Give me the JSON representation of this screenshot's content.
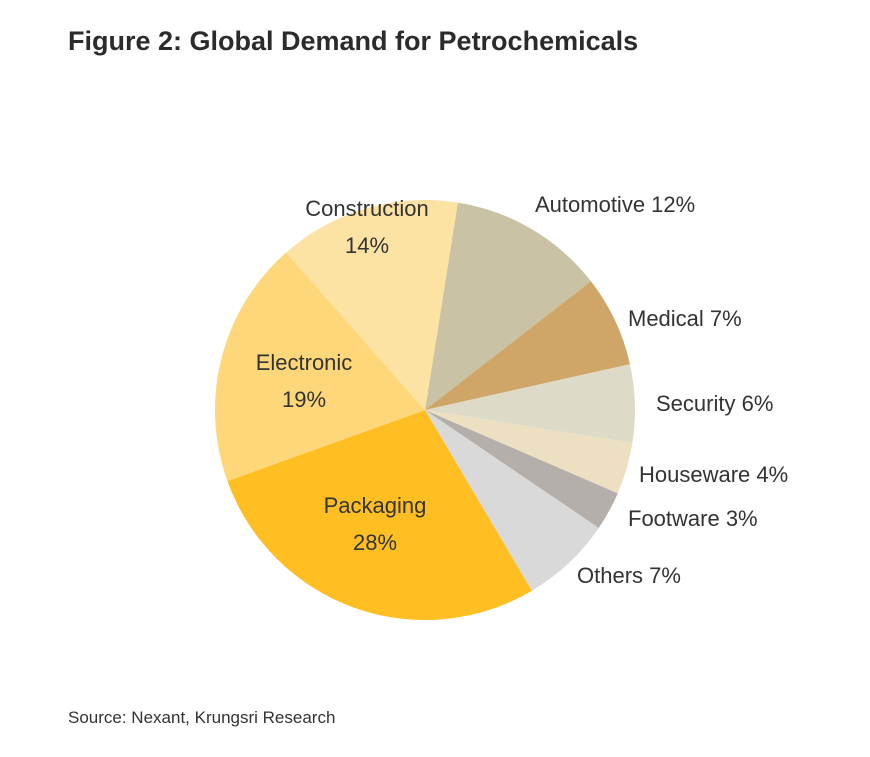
{
  "title": "Figure 2: Global Demand for Petrochemicals",
  "source": "Source: Nexant, Krungsri Research",
  "chart_data": {
    "type": "pie",
    "title": "Figure 2: Global Demand for Petrochemicals",
    "unit": "%",
    "slices": [
      {
        "label": "Automotive",
        "value": 12,
        "value_label": "12%",
        "color": "#C9C2A4"
      },
      {
        "label": "Medical",
        "value": 7,
        "value_label": "7%",
        "color": "#CFA668"
      },
      {
        "label": "Security",
        "value": 6,
        "value_label": "6%",
        "color": "#DDDBC8"
      },
      {
        "label": "Houseware",
        "value": 4,
        "value_label": "4%",
        "color": "#EDDFC2"
      },
      {
        "label": "Footware",
        "value": 3,
        "value_label": "3%",
        "color": "#B5AFAB"
      },
      {
        "label": "Others",
        "value": 7,
        "value_label": "7%",
        "color": "#D9D9D9"
      },
      {
        "label": "Packaging",
        "value": 28,
        "value_label": "28%",
        "color": "#FFBE21"
      },
      {
        "label": "Electronic",
        "value": 19,
        "value_label": "19%",
        "color": "#FDD77A"
      },
      {
        "label": "Construction",
        "value": 14,
        "value_label": "14%",
        "color": "#FDE3A3"
      }
    ]
  }
}
